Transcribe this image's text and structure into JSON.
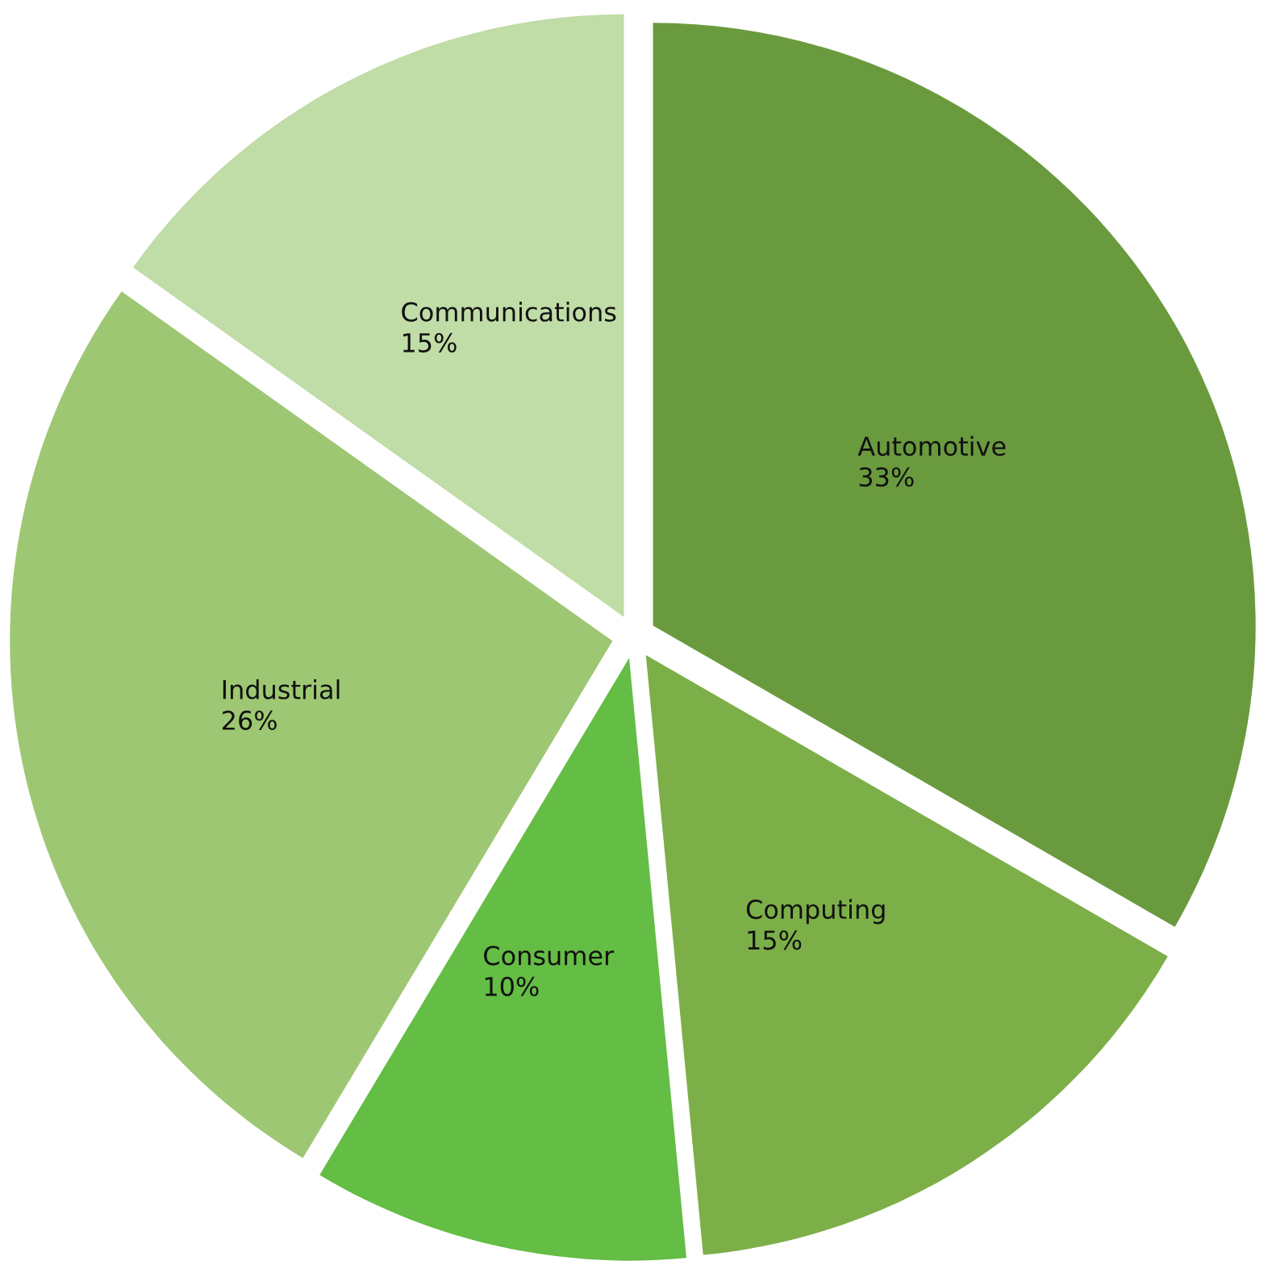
{
  "chart_data": {
    "type": "pie",
    "categories": [
      "Automotive",
      "Computing",
      "Consumer",
      "Industrial",
      "Communications"
    ],
    "values": [
      33,
      15,
      10,
      26,
      15
    ],
    "value_labels": [
      "33%",
      "15%",
      "10%",
      "26%",
      "15%"
    ],
    "colors": [
      "#6a9a3e",
      "#7caf48",
      "#64bd44",
      "#9ec773",
      "#c0dca7"
    ],
    "legend": false
  }
}
